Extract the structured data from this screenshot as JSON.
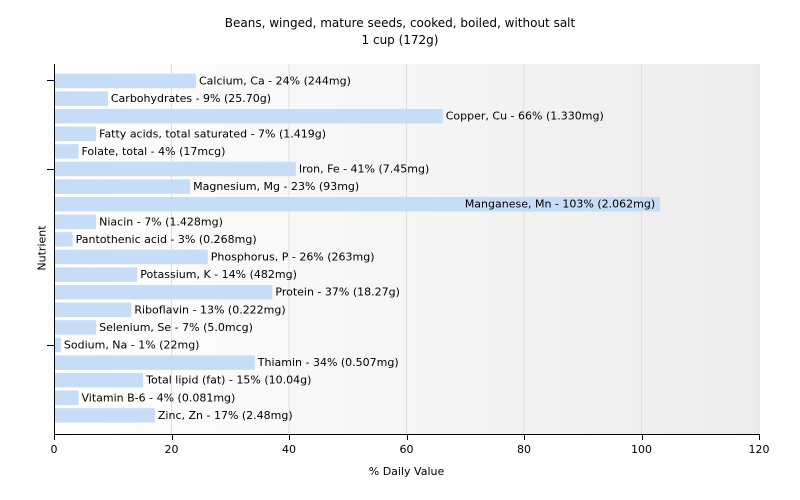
{
  "chart_data": {
    "type": "bar",
    "orientation": "horizontal",
    "title": "Beans, winged, mature seeds, cooked, boiled, without salt",
    "subtitle": "1 cup (172g)",
    "xlabel": "% Daily Value",
    "ylabel": "Nutrient",
    "xlim": [
      0,
      120
    ],
    "xticks": [
      0,
      20,
      40,
      60,
      80,
      100,
      120
    ],
    "grid": true,
    "bar_color": "#c6dcf7",
    "categories": [
      "Calcium, Ca",
      "Carbohydrates",
      "Copper, Cu",
      "Fatty acids, total saturated",
      "Folate, total",
      "Iron, Fe",
      "Magnesium, Mg",
      "Manganese, Mn",
      "Niacin",
      "Pantothenic acid",
      "Phosphorus, P",
      "Potassium, K",
      "Protein",
      "Riboflavin",
      "Selenium, Se",
      "Sodium, Na",
      "Thiamin",
      "Total lipid (fat)",
      "Vitamin B-6",
      "Zinc, Zn"
    ],
    "values": [
      24,
      9,
      66,
      7,
      4,
      41,
      23,
      103,
      7,
      3,
      26,
      14,
      37,
      13,
      7,
      1,
      34,
      15,
      4,
      17
    ],
    "labels": [
      "Calcium, Ca - 24% (244mg)",
      "Carbohydrates - 9% (25.70g)",
      "Copper, Cu - 66% (1.330mg)",
      "Fatty acids, total saturated - 7% (1.419g)",
      "Folate, total - 4% (17mcg)",
      "Iron, Fe - 41% (7.45mg)",
      "Magnesium, Mg - 23% (93mg)",
      "Manganese, Mn - 103% (2.062mg)",
      "Niacin - 7% (1.428mg)",
      "Pantothenic acid - 3% (0.268mg)",
      "Phosphorus, P - 26% (263mg)",
      "Potassium, K - 14% (482mg)",
      "Protein - 37% (18.27g)",
      "Riboflavin - 13% (0.222mg)",
      "Selenium, Se - 7% (5.0mcg)",
      "Sodium, Na - 1% (22mg)",
      "Thiamin - 34% (0.507mg)",
      "Total lipid (fat) - 15% (10.04g)",
      "Vitamin B-6 - 4% (0.081mg)",
      "Zinc, Zn - 17% (2.48mg)"
    ]
  }
}
